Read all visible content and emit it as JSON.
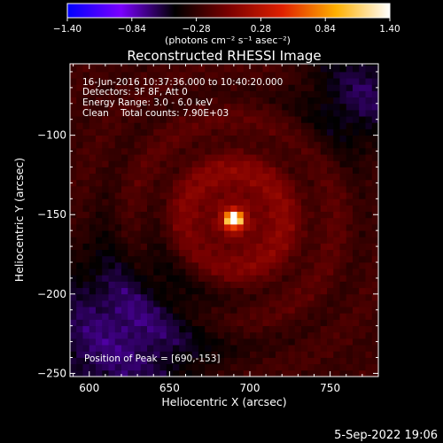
{
  "chart_data": {
    "type": "heatmap",
    "title": "Reconstructed RHESSI Image",
    "xlabel": "Heliocentric X (arcsec)",
    "ylabel": "Heliocentric Y (arcsec)",
    "xlim": [
      588,
      780
    ],
    "ylim": [
      -252,
      -55
    ],
    "x_ticks": [
      600,
      650,
      700,
      750
    ],
    "x_tick_labels": [
      "600",
      "650",
      "700",
      "750"
    ],
    "y_ticks": [
      -100,
      -150,
      -200,
      -250
    ],
    "y_tick_labels": [
      "−100",
      "−150",
      "−200",
      "−250"
    ],
    "colorbar": {
      "min": -1.4,
      "max": 1.4,
      "ticks": [
        -1.4,
        -0.84,
        -0.28,
        0.28,
        0.84,
        1.4
      ],
      "tick_labels": [
        "−1.40",
        "−0.84",
        "−0.28",
        "0.28",
        "0.84",
        "1.40"
      ],
      "unit_label": "(photons cm⁻² s⁻¹ asec⁻²)",
      "colors": [
        "#0000ff",
        "#7a00ff",
        "#000000",
        "#7a0000",
        "#e02000",
        "#ffb000",
        "#ffffff"
      ]
    },
    "annotations": [
      "16-Jun-2016 10:37:36.000 to 10:40:20.000",
      "Detectors: 3F 8F, Att 0",
      "Energy Range: 3.0 - 6.0 keV",
      "Clean    Total counts: 7.90E+03"
    ],
    "peak_label": "Position of Peak = [690,-153]",
    "peak": {
      "x": 690,
      "y": -153,
      "value": 1.4
    },
    "grid": false
  },
  "footer": {
    "date": "5-Sep-2022 19:06"
  }
}
